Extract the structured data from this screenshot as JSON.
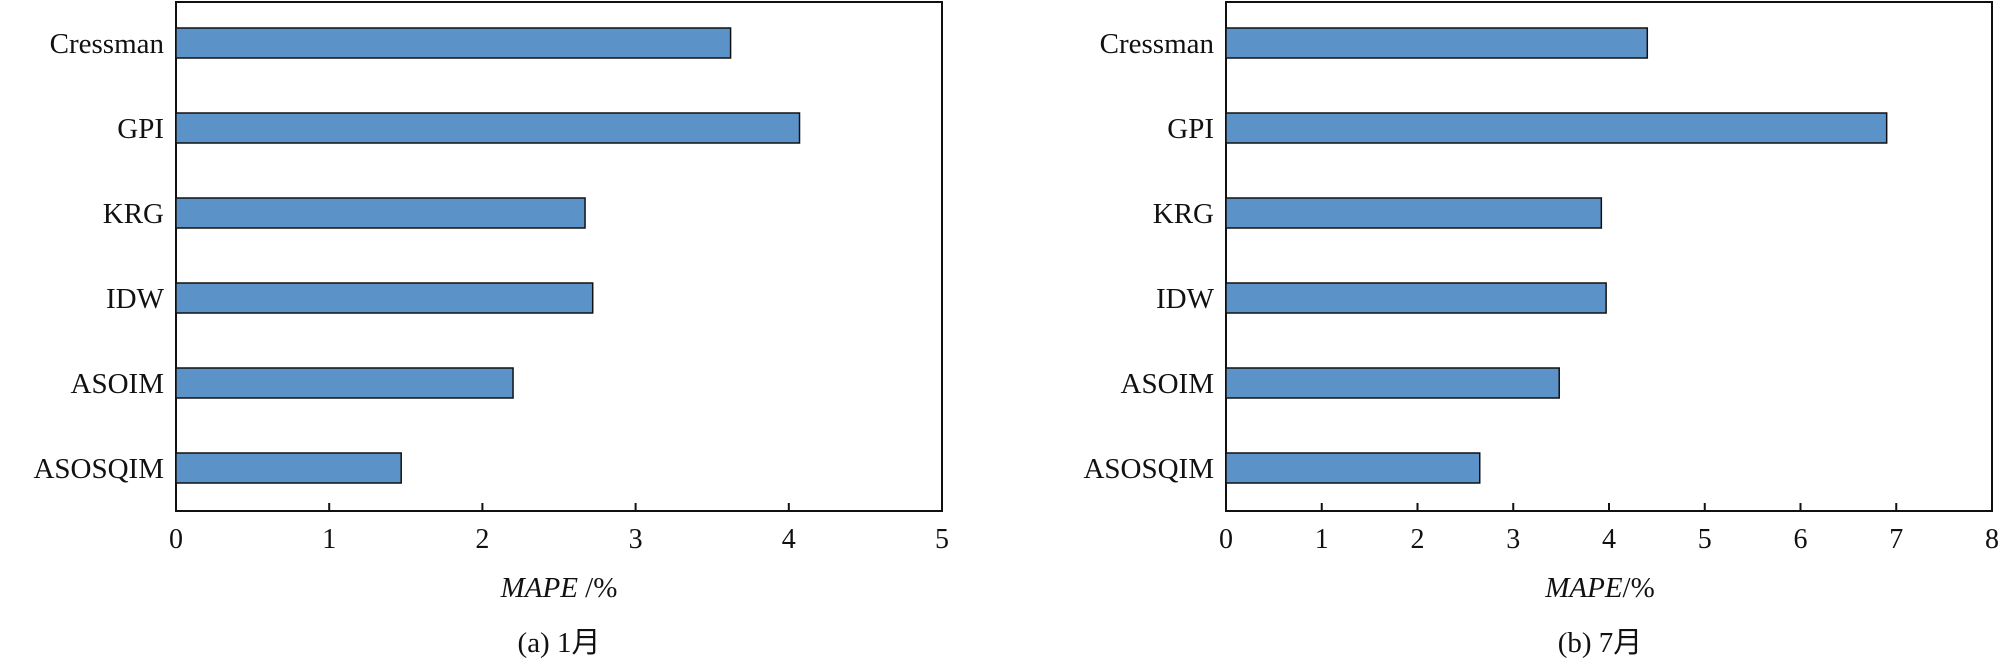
{
  "chart_data": [
    {
      "type": "bar",
      "orientation": "horizontal",
      "title": "",
      "caption": "(a) 1月",
      "xlabel": {
        "italic": "MAPE",
        "rest": " /%"
      },
      "ylabel": "",
      "categories": [
        "Cressman",
        "GPI",
        "KRG",
        "IDW",
        "ASOIM",
        "ASOSQIM"
      ],
      "values": [
        3.62,
        4.07,
        2.67,
        2.72,
        2.2,
        1.47
      ],
      "xlim": [
        0,
        5
      ],
      "xticks": [
        "0",
        "1",
        "2",
        "3",
        "4",
        "5"
      ],
      "grid": false,
      "bar_color": "#5B93C9"
    },
    {
      "type": "bar",
      "orientation": "horizontal",
      "title": "",
      "caption": "(b) 7月",
      "xlabel": {
        "italic": "MAPE",
        "rest": "/%"
      },
      "ylabel": "",
      "categories": [
        "Cressman",
        "GPI",
        "KRG",
        "IDW",
        "ASOIM",
        "ASOSQIM"
      ],
      "values": [
        4.4,
        6.9,
        3.92,
        3.97,
        3.48,
        2.65
      ],
      "xlim": [
        0,
        8
      ],
      "xticks": [
        "0",
        "1",
        "2",
        "3",
        "4",
        "5",
        "6",
        "7",
        "8"
      ],
      "grid": false,
      "bar_color": "#5B93C9"
    }
  ]
}
